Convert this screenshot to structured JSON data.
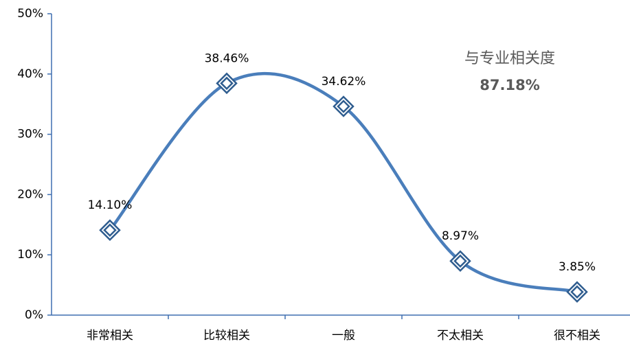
{
  "chart_data": {
    "type": "line",
    "categories": [
      "非常相关",
      "比较相关",
      "一般",
      "不太相关",
      "很不相关"
    ],
    "values": [
      14.1,
      38.46,
      34.62,
      8.97,
      3.85
    ],
    "value_labels": [
      "14.10%",
      "38.46%",
      "34.62%",
      "8.97%",
      "3.85%"
    ],
    "color": "#4a7ebb",
    "marker_color": "#2f5d8f",
    "ylim": [
      0,
      50
    ],
    "yticks": [
      {
        "value": 0,
        "label": "0%"
      },
      {
        "value": 10,
        "label": "10%"
      },
      {
        "value": 20,
        "label": "20%"
      },
      {
        "value": 30,
        "label": "30%"
      },
      {
        "value": 40,
        "label": "40%"
      },
      {
        "value": 50,
        "label": "50%"
      }
    ],
    "smooth": true,
    "annotations": [
      "与专业相关度",
      "87.18%"
    ]
  }
}
